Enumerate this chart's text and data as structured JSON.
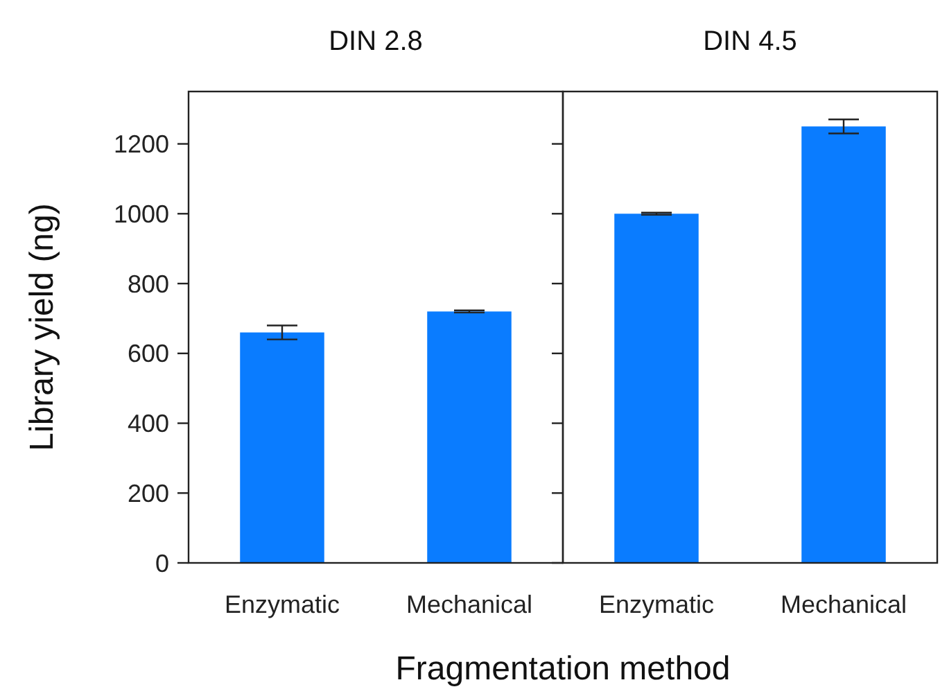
{
  "chart_data": [
    {
      "type": "bar",
      "title": "DIN 2.8",
      "categories": [
        "Enzymatic",
        "Mechanical"
      ],
      "values": [
        660,
        720
      ],
      "errors": [
        20,
        3
      ],
      "color": "#0a7cff",
      "ylim": [
        0,
        1350
      ],
      "yticks": [
        0,
        200,
        400,
        600,
        800,
        1000,
        1200
      ],
      "ylabel": "Library yield (ng)",
      "xlabel": "Fragmentation method"
    },
    {
      "type": "bar",
      "title": "DIN 4.5",
      "categories": [
        "Enzymatic",
        "Mechanical"
      ],
      "values": [
        1000,
        1250
      ],
      "errors": [
        3,
        20
      ],
      "color": "#0a7cff",
      "ylim": [
        0,
        1350
      ],
      "yticks": [
        0,
        200,
        400,
        600,
        800,
        1000,
        1200
      ],
      "tick_labels": "x"
    }
  ]
}
